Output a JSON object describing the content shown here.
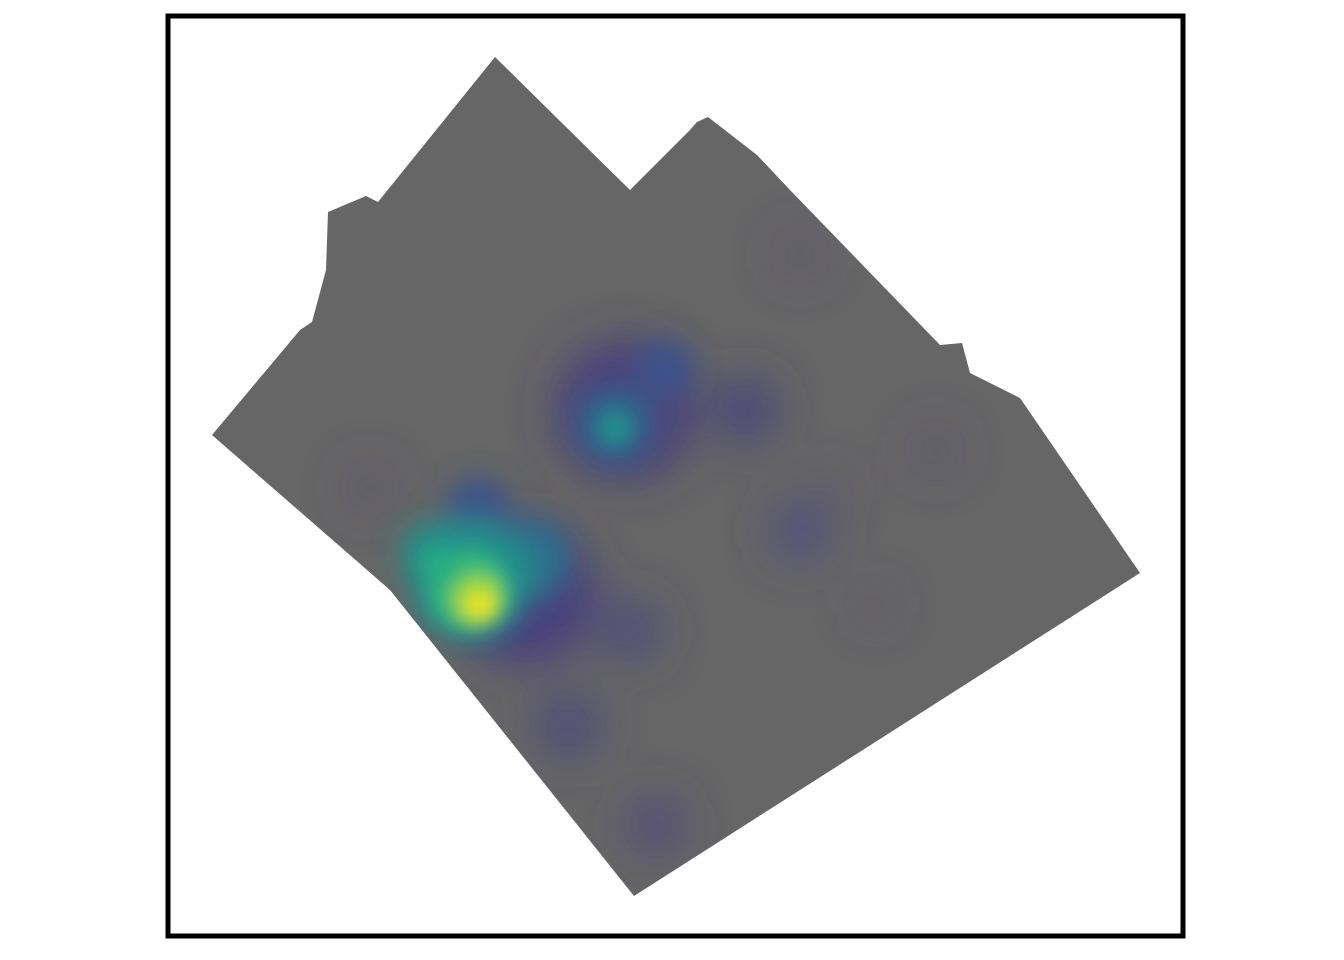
{
  "map": {
    "type": "kernel-density-heatmap",
    "colormap": "viridis",
    "colors": {
      "region_fill": "#666666",
      "frame_stroke": "#000000",
      "background": "#ffffff"
    },
    "legend": "none",
    "axes": "none"
  }
}
